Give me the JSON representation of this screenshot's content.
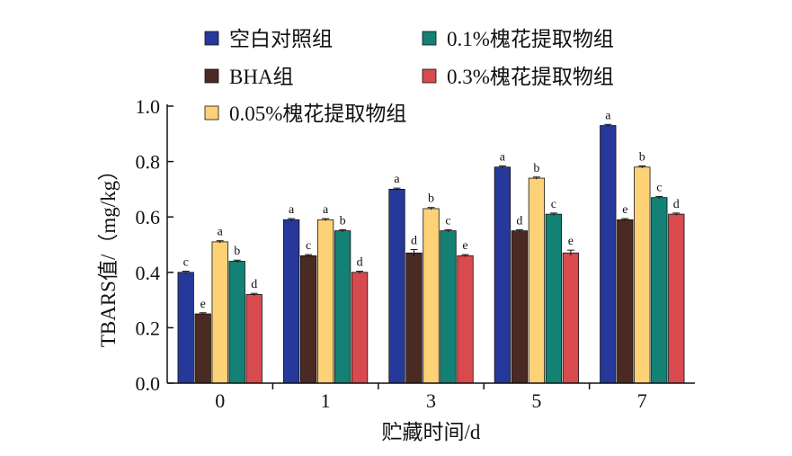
{
  "chart_data": {
    "type": "bar",
    "xlabel": "贮藏时间/d",
    "ylabel": "TBARS值/（mg/kg）",
    "categories": [
      "0",
      "1",
      "3",
      "5",
      "7"
    ],
    "ylim": [
      0,
      1.0
    ],
    "yticks": [
      "0.0",
      "0.2",
      "0.4",
      "0.6",
      "0.8",
      "1.0"
    ],
    "grid": false,
    "legend_position": "top",
    "series": [
      {
        "name": "空白对照组",
        "color": "#26399b",
        "values": [
          0.4,
          0.59,
          0.7,
          0.78,
          0.93
        ],
        "errors": [
          0.004,
          0.004,
          0.004,
          0.004,
          0.004
        ],
        "labels": [
          "c",
          "a",
          "a",
          "a",
          "a"
        ]
      },
      {
        "name": "BHA组",
        "color": "#4a2a22",
        "values": [
          0.25,
          0.46,
          0.47,
          0.55,
          0.59
        ],
        "errors": [
          0.004,
          0.004,
          0.012,
          0.004,
          0.004
        ],
        "labels": [
          "e",
          "c",
          "d",
          "d",
          "e"
        ]
      },
      {
        "name": "0.05%槐花提取物组",
        "color": "#fdd277",
        "values": [
          0.51,
          0.59,
          0.63,
          0.74,
          0.78
        ],
        "errors": [
          0.004,
          0.004,
          0.004,
          0.004,
          0.004
        ],
        "labels": [
          "a",
          "a",
          "b",
          "b",
          "b"
        ]
      },
      {
        "name": "0.1%槐花提取物组",
        "color": "#138173",
        "values": [
          0.44,
          0.55,
          0.55,
          0.61,
          0.67
        ],
        "errors": [
          0.004,
          0.004,
          0.004,
          0.004,
          0.004
        ],
        "labels": [
          "b",
          "b",
          "c",
          "c",
          "c"
        ]
      },
      {
        "name": "0.3%槐花提取物组",
        "color": "#d84a4e",
        "values": [
          0.32,
          0.4,
          0.46,
          0.47,
          0.61
        ],
        "errors": [
          0.004,
          0.004,
          0.004,
          0.01,
          0.004
        ],
        "labels": [
          "d",
          "d",
          "e",
          "e",
          "d"
        ]
      }
    ]
  }
}
